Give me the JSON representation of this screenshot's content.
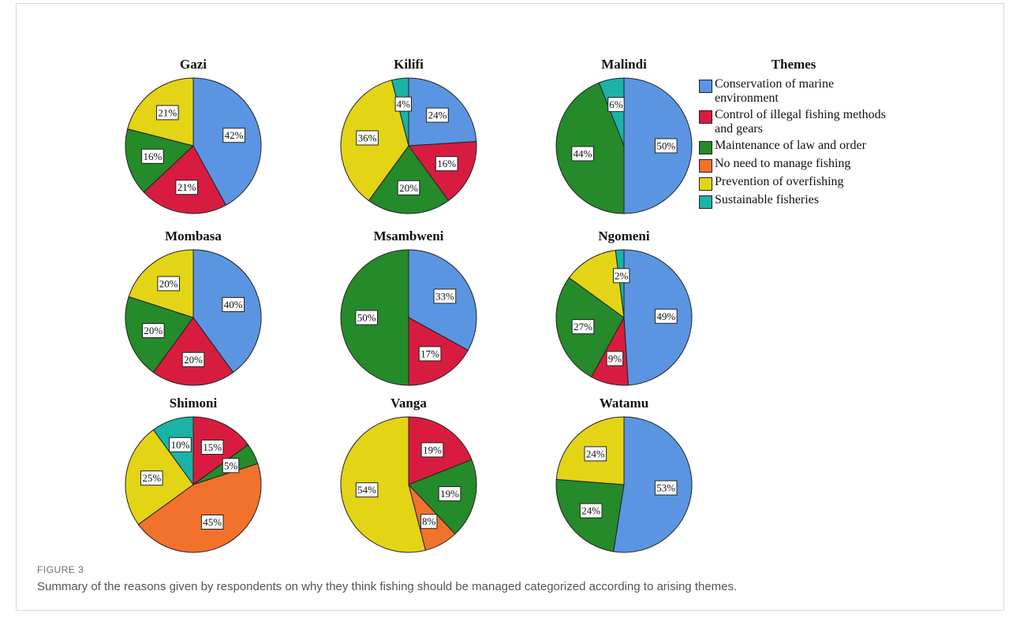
{
  "figure": {
    "label": "FIGURE 3",
    "caption": "Summary of the reasons given by respondents on why they think fishing should be managed categorized according to arising themes."
  },
  "chart_data": {
    "type": "pie",
    "legend": {
      "title": "Themes",
      "placement": "right",
      "entries": [
        {
          "key": "conservation",
          "label": "Conservation of marine environment",
          "color": "#5B95E1"
        },
        {
          "key": "illegal",
          "label": "Control of illegal fishing methods and gears",
          "color": "#D81C3F"
        },
        {
          "key": "law",
          "label": "Maintenance of law and order",
          "color": "#248A2A"
        },
        {
          "key": "noneed",
          "label": "No need to manage fishing",
          "color": "#F2722C"
        },
        {
          "key": "overfishing",
          "label": "Prevention of overfishing",
          "color": "#E3D416"
        },
        {
          "key": "sustainable",
          "label": "Sustainable fisheries",
          "color": "#1AB3A6"
        }
      ]
    },
    "pies": [
      {
        "title": "Gazi",
        "slices": [
          {
            "key": "conservation",
            "value": 42,
            "label": "42%"
          },
          {
            "key": "illegal",
            "value": 21,
            "label": "21%"
          },
          {
            "key": "law",
            "value": 16,
            "label": "16%"
          },
          {
            "key": "overfishing",
            "value": 21,
            "label": "21%"
          }
        ]
      },
      {
        "title": "Kilifi",
        "slices": [
          {
            "key": "conservation",
            "value": 24,
            "label": "24%"
          },
          {
            "key": "illegal",
            "value": 16,
            "label": "16%"
          },
          {
            "key": "law",
            "value": 20,
            "label": "20%"
          },
          {
            "key": "overfishing",
            "value": 36,
            "label": "36%"
          },
          {
            "key": "sustainable",
            "value": 4,
            "label": "4%"
          }
        ]
      },
      {
        "title": "Malindi",
        "slices": [
          {
            "key": "conservation",
            "value": 50,
            "label": "50%"
          },
          {
            "key": "law",
            "value": 44,
            "label": "44%"
          },
          {
            "key": "sustainable",
            "value": 6,
            "label": "6%"
          }
        ]
      },
      {
        "title": "Mombasa",
        "slices": [
          {
            "key": "conservation",
            "value": 40,
            "label": "40%"
          },
          {
            "key": "illegal",
            "value": 20,
            "label": "20%"
          },
          {
            "key": "law",
            "value": 20,
            "label": "20%"
          },
          {
            "key": "overfishing",
            "value": 20,
            "label": "20%"
          }
        ]
      },
      {
        "title": "Msambweni",
        "slices": [
          {
            "key": "conservation",
            "value": 33,
            "label": "33%"
          },
          {
            "key": "illegal",
            "value": 17,
            "label": "17%"
          },
          {
            "key": "law",
            "value": 50,
            "label": "50%"
          }
        ]
      },
      {
        "title": "Ngomeni",
        "slices": [
          {
            "key": "conservation",
            "value": 49,
            "label": "49%"
          },
          {
            "key": "illegal",
            "value": 9,
            "label": "9%"
          },
          {
            "key": "law",
            "value": 27,
            "label": "27%"
          },
          {
            "key": "overfishing",
            "value": 13,
            "label": ""
          },
          {
            "key": "sustainable",
            "value": 2,
            "label": "2%"
          }
        ]
      },
      {
        "title": "Shimoni",
        "slices": [
          {
            "key": "illegal",
            "value": 15,
            "label": "15%"
          },
          {
            "key": "law",
            "value": 5,
            "label": "5%"
          },
          {
            "key": "noneed",
            "value": 45,
            "label": "45%"
          },
          {
            "key": "overfishing",
            "value": 25,
            "label": "25%"
          },
          {
            "key": "sustainable",
            "value": 10,
            "label": "10%"
          }
        ]
      },
      {
        "title": "Vanga",
        "slices": [
          {
            "key": "illegal",
            "value": 19,
            "label": "19%"
          },
          {
            "key": "law",
            "value": 19,
            "label": "19%"
          },
          {
            "key": "noneed",
            "value": 8,
            "label": "8%"
          },
          {
            "key": "overfishing",
            "value": 54,
            "label": "54%"
          }
        ]
      },
      {
        "title": "Watamu",
        "slices": [
          {
            "key": "conservation",
            "value": 53,
            "label": "53%"
          },
          {
            "key": "law",
            "value": 24,
            "label": "24%"
          },
          {
            "key": "overfishing",
            "value": 24,
            "label": "24%"
          }
        ]
      }
    ]
  }
}
